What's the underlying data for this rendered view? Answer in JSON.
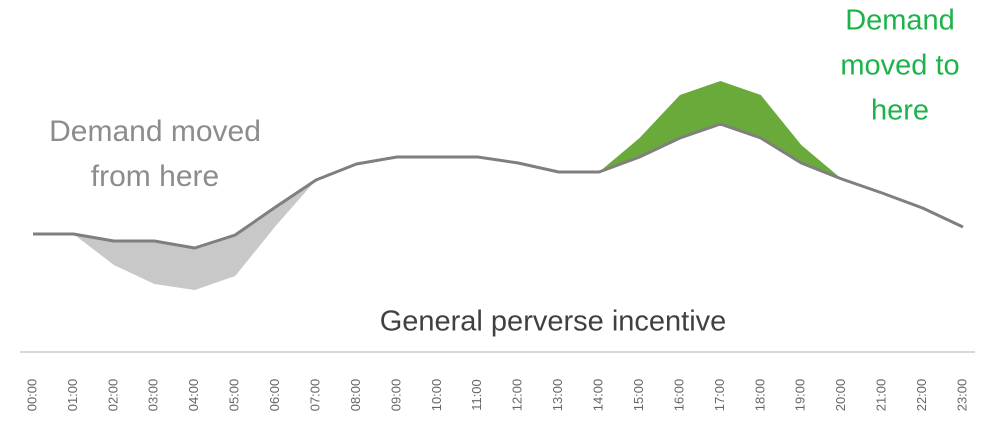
{
  "chart_data": {
    "type": "line",
    "categories": [
      "00:00",
      "01:00",
      "02:00",
      "03:00",
      "04:00",
      "05:00",
      "06:00",
      "07:00",
      "08:00",
      "09:00",
      "10:00",
      "11:00",
      "12:00",
      "13:00",
      "14:00",
      "15:00",
      "16:00",
      "17:00",
      "18:00",
      "19:00",
      "20:00",
      "21:00",
      "22:00",
      "23:00"
    ],
    "series": [
      {
        "color": "#7f7f7f",
        "values": [
          66,
          66,
          59,
          59,
          52,
          65,
          93,
          120,
          136,
          143,
          143,
          143,
          137,
          128,
          128,
          143,
          162,
          176,
          162,
          137,
          121,
          107,
          92,
          73
        ]
      },
      {
        "color": "#c8c8c8",
        "fill": true,
        "values": [
          66,
          66,
          35,
          16,
          10,
          24,
          74,
          120,
          null,
          null,
          null,
          null,
          null,
          null,
          null,
          null,
          null,
          null,
          null,
          null,
          null,
          null,
          null,
          null
        ]
      },
      {
        "color": "#6aaa3a",
        "fill": true,
        "values": [
          null,
          null,
          null,
          null,
          null,
          null,
          null,
          null,
          null,
          null,
          null,
          null,
          null,
          null,
          128,
          162,
          205,
          219,
          205,
          155,
          121,
          null,
          null,
          null
        ]
      }
    ],
    "ylim": [
      0,
      250
    ],
    "annotations": [
      {
        "lines": [
          "Demand moved",
          "from here"
        ],
        "color": "#8c8c8c"
      },
      {
        "lines": [
          "Demand",
          "moved to",
          "here"
        ],
        "color": "#1db34a"
      },
      {
        "lines": [
          "General perverse incentive"
        ],
        "color": "#404040"
      }
    ]
  }
}
